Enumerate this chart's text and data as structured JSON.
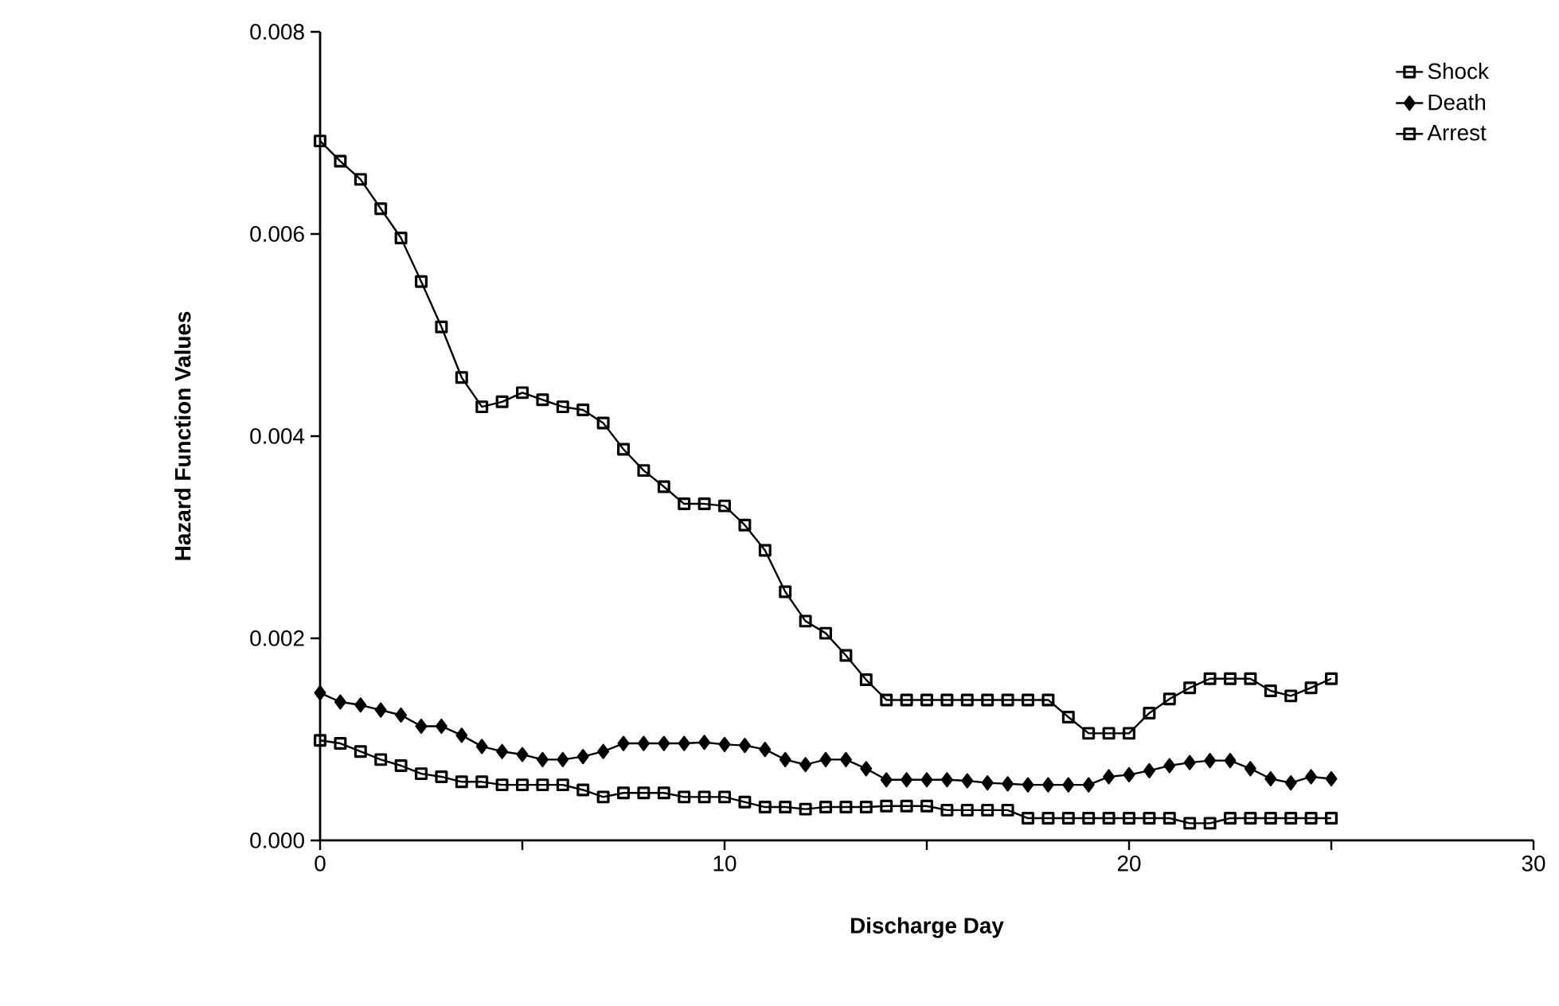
{
  "chart_data": {
    "type": "line",
    "xlabel": "Discharge Day",
    "ylabel": "Hazard Function Values",
    "x": [
      0,
      0.5,
      1,
      1.5,
      2,
      2.5,
      3,
      3.5,
      4,
      4.5,
      5,
      5.5,
      6,
      6.5,
      7,
      7.5,
      8,
      8.5,
      9,
      9.5,
      10,
      10.5,
      11,
      11.5,
      12,
      12.5,
      13,
      13.5,
      14,
      14.5,
      15,
      15.5,
      16,
      16.5,
      17,
      17.5,
      18,
      18.5,
      19,
      19.5,
      20,
      20.5,
      21,
      21.5,
      22,
      22.5,
      23,
      23.5,
      24,
      24.5,
      25
    ],
    "series": [
      {
        "name": "Shock",
        "color": "#000000",
        "marker": "square",
        "values": [
          0.00099,
          0.00096,
          0.00088,
          0.0008,
          0.00074,
          0.00066,
          0.00063,
          0.00058,
          0.00058,
          0.00055,
          0.00055,
          0.00055,
          0.00055,
          0.0005,
          0.00043,
          0.00047,
          0.00047,
          0.00047,
          0.00043,
          0.00043,
          0.00043,
          0.00038,
          0.00033,
          0.00033,
          0.00031,
          0.00033,
          0.00033,
          0.00033,
          0.00034,
          0.00034,
          0.00034,
          0.0003,
          0.0003,
          0.0003,
          0.0003,
          0.00022,
          0.00022,
          0.00022,
          0.00022,
          0.00022,
          0.00022,
          0.00022,
          0.00022,
          0.00017,
          0.00017,
          0.00022,
          0.00022,
          0.00022,
          0.00022,
          0.00022,
          0.00022
        ]
      },
      {
        "name": "Death",
        "color": "#000000",
        "marker": "diamond",
        "values": [
          0.00146,
          0.00137,
          0.00134,
          0.00129,
          0.00124,
          0.00113,
          0.00113,
          0.00104,
          0.00093,
          0.00088,
          0.00085,
          0.0008,
          0.0008,
          0.00083,
          0.00088,
          0.00096,
          0.00096,
          0.00096,
          0.00096,
          0.00097,
          0.00095,
          0.00094,
          0.0009,
          0.0008,
          0.00075,
          0.0008,
          0.0008,
          0.00071,
          0.0006,
          0.0006,
          0.0006,
          0.0006,
          0.00059,
          0.00057,
          0.00056,
          0.00055,
          0.00055,
          0.00055,
          0.00055,
          0.00063,
          0.00065,
          0.00069,
          0.00074,
          0.00077,
          0.00079,
          0.00079,
          0.00071,
          0.00061,
          0.00057,
          0.00063,
          0.00061
        ]
      },
      {
        "name": "Arrest",
        "color": "#000000",
        "marker": "square",
        "values": [
          0.00692,
          0.00672,
          0.00654,
          0.00625,
          0.00596,
          0.00553,
          0.00508,
          0.00458,
          0.00429,
          0.00434,
          0.00443,
          0.00436,
          0.00429,
          0.00426,
          0.00413,
          0.00387,
          0.00366,
          0.0035,
          0.00333,
          0.00333,
          0.00331,
          0.00312,
          0.00287,
          0.00246,
          0.00217,
          0.00205,
          0.00183,
          0.00159,
          0.00139,
          0.00139,
          0.00139,
          0.00139,
          0.00139,
          0.00139,
          0.00139,
          0.00139,
          0.00139,
          0.00122,
          0.00106,
          0.00106,
          0.00106,
          0.00126,
          0.0014,
          0.00151,
          0.0016,
          0.0016,
          0.0016,
          0.00148,
          0.00143,
          0.00151,
          0.0016
        ]
      }
    ],
    "xlim": [
      0,
      30
    ],
    "xticks": [
      0,
      {
        "value": 5,
        "label": null
      },
      10,
      {
        "value": 15,
        "label": null
      },
      20,
      {
        "value": 25,
        "label": null
      },
      30
    ],
    "ylim": [
      0,
      0.008
    ],
    "yticks": [
      {
        "value": 0,
        "label": "0.000"
      },
      {
        "value": 0.002,
        "label": "0.002"
      },
      {
        "value": 0.004,
        "label": "0.004"
      },
      {
        "value": 0.006,
        "label": "0.006"
      },
      {
        "value": 0.008,
        "label": "0.008"
      }
    ],
    "legend": "top right",
    "grid": false,
    "line_style": "solid"
  }
}
